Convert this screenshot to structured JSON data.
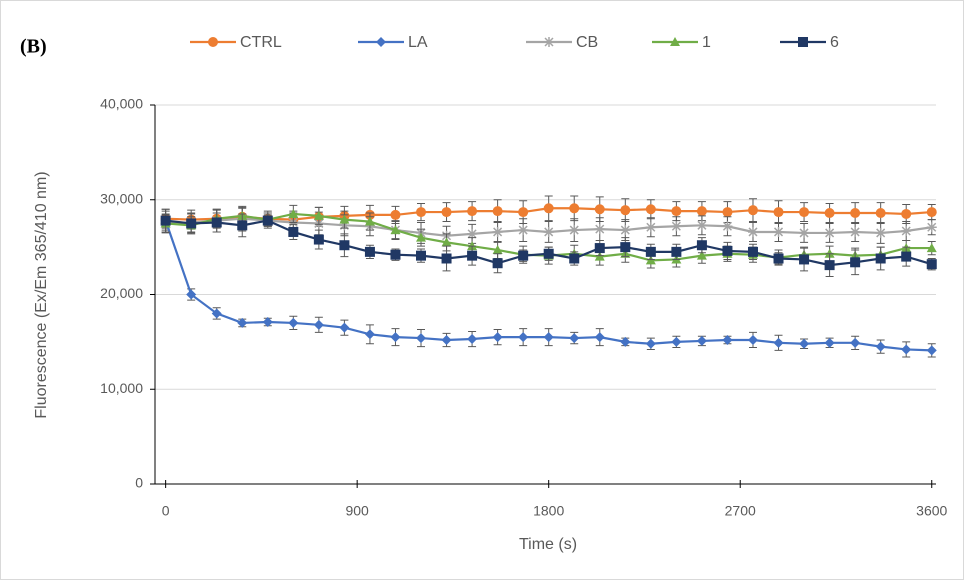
{
  "chart_data": {
    "type": "line",
    "panel_label": "(B)",
    "x_label": "Time (s)",
    "y_label": "Fluorescence (Ex/Em 365/410 nm)",
    "x": [
      0,
      120,
      240,
      360,
      480,
      600,
      720,
      840,
      960,
      1080,
      1200,
      1320,
      1440,
      1560,
      1680,
      1800,
      1920,
      2040,
      2160,
      2280,
      2400,
      2520,
      2640,
      2760,
      2880,
      3000,
      3120,
      3240,
      3360,
      3480,
      3600
    ],
    "xlim": [
      -50,
      3620
    ],
    "xticks": [
      0,
      900,
      1800,
      2700,
      3600
    ],
    "ylim": [
      0,
      40000
    ],
    "yticks": [
      0,
      {
        "value": 10000,
        "label": "10,000"
      },
      {
        "value": 20000,
        "label": "20,000"
      },
      {
        "value": 30000,
        "label": "30,000"
      },
      {
        "value": 40000,
        "label": "40,000"
      }
    ],
    "grid": true,
    "legend": "top",
    "series": [
      {
        "name": "CTRL",
        "color": "#ed7d31",
        "marker": "circle",
        "values": [
          28000,
          27900,
          28000,
          28200,
          28000,
          27900,
          28200,
          28300,
          28400,
          28400,
          28700,
          28700,
          28800,
          28800,
          28700,
          29100,
          29100,
          29000,
          28900,
          29000,
          28800,
          28800,
          28700,
          28900,
          28700,
          28700,
          28600,
          28600,
          28600,
          28500,
          28700
        ],
        "errors": [
          1000,
          1000,
          1000,
          900,
          800,
          900,
          1000,
          1000,
          1000,
          900,
          900,
          1000,
          1000,
          1200,
          1200,
          1300,
          1300,
          1300,
          1200,
          1000,
          1000,
          1000,
          1100,
          1200,
          1200,
          1000,
          1000,
          1100,
          1100,
          1000,
          800
        ]
      },
      {
        "name": "LA",
        "color": "#4472c4",
        "marker": "diamond",
        "values": [
          27800,
          20000,
          18000,
          17000,
          17100,
          17000,
          16800,
          16500,
          15800,
          15500,
          15400,
          15200,
          15300,
          15500,
          15500,
          15500,
          15400,
          15500,
          15000,
          14800,
          15000,
          15100,
          15200,
          15200,
          14900,
          14800,
          14900,
          14900,
          14500,
          14200,
          14100
        ],
        "errors": [
          1000,
          600,
          600,
          400,
          400,
          700,
          800,
          800,
          1000,
          900,
          900,
          700,
          800,
          800,
          900,
          900,
          600,
          900,
          400,
          600,
          600,
          500,
          400,
          800,
          800,
          500,
          500,
          700,
          700,
          800,
          700
        ]
      },
      {
        "name": "CB",
        "color": "#a5a5a5",
        "marker": "star",
        "values": [
          27500,
          27600,
          27800,
          28000,
          27800,
          27600,
          27500,
          27300,
          27200,
          26800,
          26500,
          26200,
          26400,
          26600,
          26800,
          26600,
          26800,
          26900,
          26800,
          27100,
          27200,
          27300,
          27200,
          26600,
          26600,
          26500,
          26500,
          26600,
          26500,
          26700,
          27100
        ],
        "errors": [
          1000,
          1000,
          1200,
          1300,
          800,
          1000,
          1200,
          1100,
          1000,
          1000,
          1100,
          1000,
          1000,
          1100,
          1200,
          1100,
          1200,
          1200,
          1100,
          1000,
          1000,
          1000,
          1000,
          1000,
          1000,
          1000,
          1000,
          1000,
          1100,
          1000,
          800
        ]
      },
      {
        "name": "1",
        "color": "#70ad47",
        "marker": "triangle",
        "values": [
          27500,
          27300,
          28000,
          28300,
          27900,
          28500,
          28300,
          27900,
          27700,
          26800,
          26000,
          25500,
          25100,
          24700,
          24200,
          24100,
          24300,
          24000,
          24300,
          23600,
          23700,
          24100,
          24300,
          24200,
          23900,
          24200,
          24300,
          24100,
          24200,
          24900,
          24900
        ],
        "errors": [
          900,
          900,
          900,
          900,
          700,
          900,
          900,
          900,
          900,
          900,
          900,
          900,
          900,
          900,
          900,
          900,
          900,
          900,
          900,
          800,
          800,
          800,
          800,
          800,
          800,
          800,
          800,
          800,
          800,
          800,
          700
        ]
      },
      {
        "name": "6",
        "color": "#203864",
        "marker": "square",
        "values": [
          27800,
          27500,
          27600,
          27300,
          27800,
          26600,
          25800,
          25200,
          24500,
          24200,
          24100,
          23800,
          24100,
          23300,
          24100,
          24300,
          23800,
          24900,
          25000,
          24500,
          24500,
          25200,
          24600,
          24500,
          23800,
          23700,
          23100,
          23400,
          23800,
          24000,
          23200
        ],
        "errors": [
          1200,
          1000,
          1000,
          1200,
          600,
          800,
          1000,
          1200,
          700,
          600,
          700,
          1300,
          1000,
          1000,
          600,
          700,
          700,
          800,
          1000,
          800,
          800,
          800,
          900,
          800,
          600,
          1200,
          1200,
          1300,
          1200,
          1000,
          600
        ]
      }
    ]
  }
}
